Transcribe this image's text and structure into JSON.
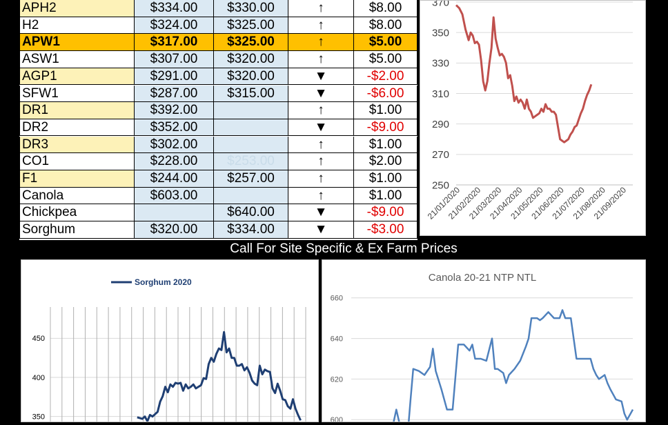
{
  "prices_table": {
    "rows": [
      {
        "name": "APH2",
        "c1": "$334.00",
        "c2": "$330.00",
        "arrow": "↑",
        "change": "$8.00",
        "neg": false,
        "shade": "yellow",
        "hl": false
      },
      {
        "name": "H2",
        "c1": "$324.00",
        "c2": "$325.00",
        "arrow": "↑",
        "change": "$8.00",
        "neg": false,
        "shade": "white",
        "hl": false
      },
      {
        "name": "APW1",
        "c1": "$317.00",
        "c2": "$325.00",
        "arrow": "↑",
        "change": "$5.00",
        "neg": false,
        "shade": "yellow",
        "hl": true
      },
      {
        "name": "ASW1",
        "c1": "$307.00",
        "c2": "$320.00",
        "arrow": "↑",
        "change": "$5.00",
        "neg": false,
        "shade": "white",
        "hl": false
      },
      {
        "name": "AGP1",
        "c1": "$291.00",
        "c2": "$320.00",
        "arrow": "▼",
        "change": "-$2.00",
        "neg": true,
        "shade": "yellow",
        "hl": false
      },
      {
        "name": "SFW1",
        "c1": "$287.00",
        "c2": "$315.00",
        "arrow": "▼",
        "change": "-$6.00",
        "neg": true,
        "shade": "white",
        "hl": false
      },
      {
        "name": "DR1",
        "c1": "$392.00",
        "c2": "",
        "arrow": "↑",
        "change": "$1.00",
        "neg": false,
        "shade": "yellow",
        "hl": false
      },
      {
        "name": "DR2",
        "c1": "$352.00",
        "c2": "",
        "arrow": "▼",
        "change": "-$9.00",
        "neg": true,
        "shade": "white",
        "hl": false
      },
      {
        "name": "DR3",
        "c1": "$302.00",
        "c2": "",
        "arrow": "↑",
        "change": "$1.00",
        "neg": false,
        "shade": "yellow",
        "hl": false
      },
      {
        "name": "CO1",
        "c1": "$228.00",
        "c2": "$253.00",
        "c2_faded": true,
        "arrow": "↑",
        "change": "$2.00",
        "neg": false,
        "shade": "white",
        "hl": false
      },
      {
        "name": "F1",
        "c1": "$244.00",
        "c2": "$257.00",
        "arrow": "↑",
        "change": "$1.00",
        "neg": false,
        "shade": "yellow",
        "hl": false
      },
      {
        "name": "Canola",
        "c1": "$603.00",
        "c2": "",
        "arrow": "↑",
        "change": "$1.00",
        "neg": false,
        "shade": "white",
        "hl": false
      },
      {
        "name": "Chickpea",
        "c1": "",
        "c2": "$640.00",
        "arrow": "▼",
        "change": "-$9.00",
        "neg": true,
        "shade": "white",
        "hl": false
      },
      {
        "name": "Sorghum",
        "c1": "$320.00",
        "c2": "$334.00",
        "arrow": "▼",
        "change": "-$3.00",
        "neg": true,
        "shade": "white",
        "hl": false
      }
    ]
  },
  "banner": {
    "text": "Call For Site Specific & Ex Farm Prices"
  },
  "colors": {
    "highlight": "#ffc000",
    "price_fill": "#dbe9f3",
    "name_fill": "#fdf2b8",
    "negative": "#e00000",
    "apw_line": "#c0504d",
    "sorghum_line": "#1f3f73",
    "canola_line": "#4f81bd"
  },
  "chart_data": [
    {
      "type": "line",
      "title": "",
      "xlabel": "",
      "ylabel": "",
      "ylim": [
        250,
        370
      ],
      "yticks": [
        250,
        270,
        290,
        310,
        330,
        350,
        370
      ],
      "ytick_labels": [
        "250",
        "270",
        "290",
        "310",
        "330",
        "350",
        "370"
      ],
      "xtick_labels": [
        "21/01/2020",
        "21/02/2020",
        "21/03/2020",
        "21/04/2020",
        "21/05/2020",
        "21/06/2020",
        "21/07/2020",
        "21/08/2020",
        "21/09/2020"
      ],
      "xlim": [
        0,
        8.5
      ],
      "grid": true,
      "series": [
        {
          "values": [
            [
              0,
              368
            ],
            [
              0.15,
              366
            ],
            [
              0.3,
              362
            ],
            [
              0.45,
              352
            ],
            [
              0.6,
              345
            ],
            [
              0.7,
              350
            ],
            [
              0.8,
              348
            ],
            [
              0.9,
              343
            ],
            [
              1.0,
              344
            ],
            [
              1.1,
              342
            ],
            [
              1.2,
              332
            ],
            [
              1.3,
              318
            ],
            [
              1.4,
              312
            ],
            [
              1.5,
              318
            ],
            [
              1.6,
              330
            ],
            [
              1.7,
              340
            ],
            [
              1.8,
              360
            ],
            [
              1.9,
              346
            ],
            [
              2.0,
              340
            ],
            [
              2.1,
              335
            ],
            [
              2.2,
              336
            ],
            [
              2.3,
              334
            ],
            [
              2.4,
              330
            ],
            [
              2.5,
              320
            ],
            [
              2.6,
              322
            ],
            [
              2.7,
              315
            ],
            [
              2.8,
              305
            ],
            [
              2.9,
              308
            ],
            [
              3.0,
              304
            ],
            [
              3.1,
              306
            ],
            [
              3.2,
              304
            ],
            [
              3.3,
              300
            ],
            [
              3.4,
              306
            ],
            [
              3.5,
              300
            ],
            [
              3.6,
              298
            ],
            [
              3.7,
              294
            ],
            [
              3.8,
              295
            ],
            [
              3.9,
              296
            ],
            [
              4.0,
              297
            ],
            [
              4.1,
              300
            ],
            [
              4.2,
              298
            ],
            [
              4.3,
              303
            ],
            [
              4.4,
              300
            ],
            [
              4.5,
              300
            ],
            [
              4.6,
              298
            ],
            [
              4.7,
              298
            ],
            [
              4.8,
              296
            ],
            [
              4.9,
              288
            ],
            [
              5.0,
              280
            ],
            [
              5.1,
              279
            ],
            [
              5.2,
              278
            ],
            [
              5.3,
              279
            ],
            [
              5.4,
              280
            ],
            [
              5.5,
              283
            ],
            [
              5.6,
              285
            ],
            [
              5.7,
              288
            ],
            [
              5.8,
              289
            ],
            [
              5.9,
              293
            ],
            [
              6.0,
              297
            ],
            [
              6.1,
              300
            ],
            [
              6.2,
              305
            ],
            [
              6.3,
              309
            ],
            [
              6.4,
              312
            ],
            [
              6.5,
              316
            ]
          ]
        }
      ]
    },
    {
      "type": "line",
      "title": "",
      "legend": {
        "position": "top",
        "entries": [
          "Sorghum 2020"
        ]
      },
      "ylim": [
        340,
        490
      ],
      "yticks": [
        350,
        400,
        450
      ],
      "ytick_labels": [
        "350",
        "400",
        "450"
      ],
      "xlim": [
        0,
        100
      ],
      "grid": true,
      "series": [
        {
          "name": "Sorghum 2020",
          "values": [
            [
              34,
              349
            ],
            [
              36,
              347
            ],
            [
              37,
              350
            ],
            [
              38,
              344
            ],
            [
              39,
              352
            ],
            [
              40,
              350
            ],
            [
              41,
              353
            ],
            [
              42,
              356
            ],
            [
              43,
              369
            ],
            [
              44,
              376
            ],
            [
              45,
              388
            ],
            [
              46,
              381
            ],
            [
              47,
              391
            ],
            [
              48,
              388
            ],
            [
              49,
              393
            ],
            [
              50,
              392
            ],
            [
              51,
              393
            ],
            [
              52,
              383
            ],
            [
              53,
              391
            ],
            [
              54,
              386
            ],
            [
              55,
              388
            ],
            [
              56,
              391
            ],
            [
              57,
              386
            ],
            [
              58,
              388
            ],
            [
              59,
              390
            ],
            [
              60,
              399
            ],
            [
              61,
              398
            ],
            [
              62,
              417
            ],
            [
              63,
              425
            ],
            [
              64,
              420
            ],
            [
              65,
              430
            ],
            [
              66,
              437
            ],
            [
              67,
              435
            ],
            [
              68,
              458
            ],
            [
              69,
              432
            ],
            [
              70,
              437
            ],
            [
              71,
              425
            ],
            [
              72,
              425
            ],
            [
              73,
              415
            ],
            [
              74,
              415
            ],
            [
              75,
              417
            ],
            [
              76,
              409
            ],
            [
              77,
              413
            ],
            [
              78,
              406
            ],
            [
              79,
              396
            ],
            [
              80,
              392
            ],
            [
              81,
              390
            ],
            [
              82,
              415
            ],
            [
              83,
              404
            ],
            [
              84,
              410
            ],
            [
              85,
              408
            ],
            [
              86,
              407
            ],
            [
              87,
              386
            ],
            [
              88,
              380
            ],
            [
              89,
              392
            ],
            [
              90,
              383
            ],
            [
              91,
              372
            ],
            [
              92,
              371
            ],
            [
              93,
              363
            ],
            [
              94,
              360
            ],
            [
              95,
              372
            ],
            [
              96,
              360
            ],
            [
              97,
              352
            ],
            [
              98,
              345
            ]
          ]
        }
      ]
    },
    {
      "type": "line",
      "title": "Canola 20-21 NTP NTL",
      "ylim": [
        595,
        665
      ],
      "yticks": [
        600,
        620,
        640,
        660
      ],
      "ytick_labels": [
        "600",
        "620",
        "640",
        "660"
      ],
      "xlim": [
        0,
        100
      ],
      "grid": true,
      "series": [
        {
          "values": [
            [
              0,
              593
            ],
            [
              8,
              593
            ],
            [
              12,
              593
            ],
            [
              14,
              592
            ],
            [
              16,
              605
            ],
            [
              18,
              593
            ],
            [
              20,
              592
            ],
            [
              21,
              609
            ],
            [
              22,
              625
            ],
            [
              24,
              624
            ],
            [
              26,
              622
            ],
            [
              28,
              626
            ],
            [
              29,
              635
            ],
            [
              30,
              624
            ],
            [
              32,
              615
            ],
            [
              34,
              605
            ],
            [
              36,
              605
            ],
            [
              38,
              637
            ],
            [
              40,
              637
            ],
            [
              42,
              634
            ],
            [
              43,
              637
            ],
            [
              44,
              630
            ],
            [
              46,
              630
            ],
            [
              48,
              629
            ],
            [
              50,
              640
            ],
            [
              51,
              625
            ],
            [
              52,
              625
            ],
            [
              54,
              623
            ],
            [
              55,
              618
            ],
            [
              56,
              622
            ],
            [
              58,
              625
            ],
            [
              60,
              629
            ],
            [
              62,
              636
            ],
            [
              63,
              640
            ],
            [
              64,
              650
            ],
            [
              66,
              650
            ],
            [
              67,
              649
            ],
            [
              68,
              650
            ],
            [
              70,
              653
            ],
            [
              72,
              650
            ],
            [
              74,
              650
            ],
            [
              75,
              654
            ],
            [
              76,
              650
            ],
            [
              78,
              650
            ],
            [
              79,
              640
            ],
            [
              80,
              630
            ],
            [
              82,
              630
            ],
            [
              84,
              630
            ],
            [
              85,
              630
            ],
            [
              86,
              625
            ],
            [
              87,
              622
            ],
            [
              88,
              620
            ],
            [
              90,
              622
            ],
            [
              91,
              618
            ],
            [
              92,
              615
            ],
            [
              94,
              610
            ],
            [
              96,
              609
            ],
            [
              97,
              603
            ],
            [
              98,
              600
            ],
            [
              100,
              605
            ]
          ]
        }
      ]
    }
  ]
}
